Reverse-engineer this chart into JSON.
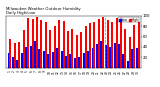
{
  "title": "Milwaukee Weather Outdoor Humidity",
  "subtitle": "Daily High/Low",
  "high_color": "#ff0000",
  "low_color": "#0000ff",
  "background_color": "#ffffff",
  "ylim": [
    0,
    100
  ],
  "ytick_labels": [
    "20",
    "40",
    "60",
    "80",
    "100"
  ],
  "ytick_vals": [
    20,
    40,
    60,
    80,
    100
  ],
  "days": [
    "1",
    "2",
    "3",
    "4",
    "5",
    "6",
    "7",
    "8",
    "9",
    "10",
    "11",
    "12",
    "13",
    "14",
    "15",
    "16",
    "17",
    "18",
    "19",
    "20",
    "21",
    "22",
    "23",
    "24",
    "25",
    "26",
    "27",
    "28",
    "29",
    "30"
  ],
  "high": [
    55,
    48,
    50,
    72,
    95,
    93,
    98,
    92,
    88,
    72,
    80,
    92,
    90,
    70,
    75,
    62,
    68,
    80,
    85,
    88,
    93,
    97,
    92,
    88,
    95,
    98,
    75,
    60,
    83,
    87
  ],
  "low": [
    28,
    20,
    16,
    28,
    40,
    42,
    52,
    36,
    33,
    26,
    30,
    38,
    33,
    22,
    26,
    18,
    20,
    28,
    33,
    38,
    46,
    52,
    44,
    40,
    48,
    46,
    26,
    13,
    36,
    38
  ],
  "dashed_line_x": 21.5
}
